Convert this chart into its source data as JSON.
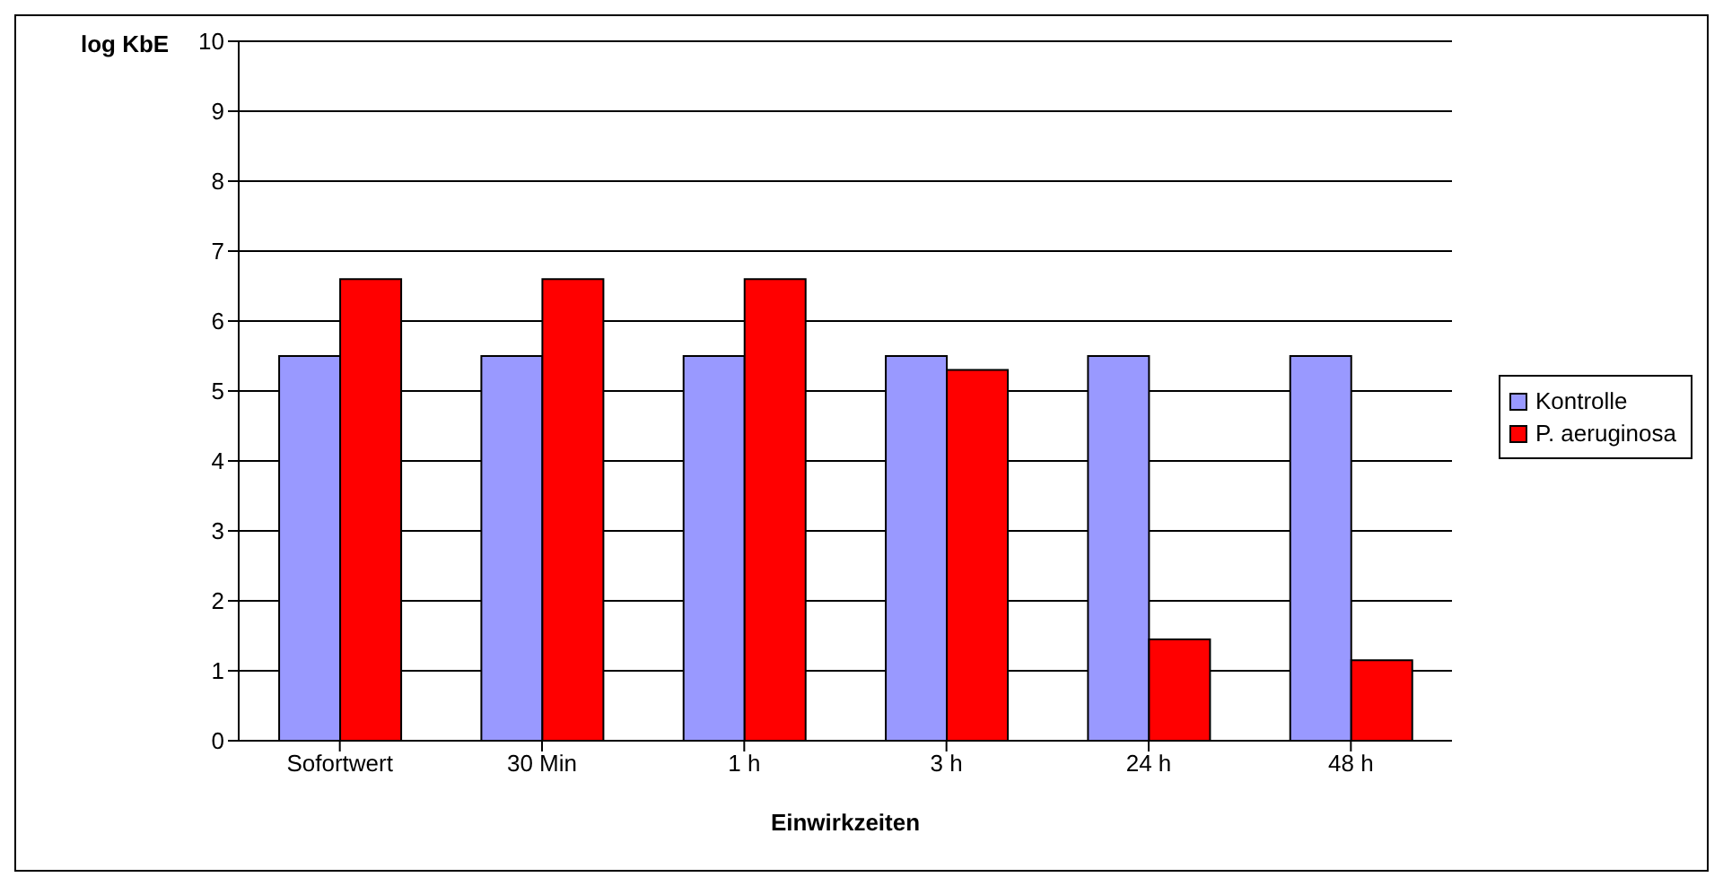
{
  "chart_data": {
    "type": "bar",
    "xlabel": "Einwirkzeiten",
    "ylabel": "log KbE",
    "categories": [
      "Sofortwert",
      "30 Min",
      "1 h",
      "3 h",
      "24 h",
      "48 h"
    ],
    "series": [
      {
        "name": "Kontrolle",
        "color": "#9999ff",
        "values": [
          5.5,
          5.5,
          5.5,
          5.5,
          5.5,
          5.5
        ]
      },
      {
        "name": "P. aeruginosa",
        "color": "#ff0000",
        "values": [
          6.6,
          6.6,
          6.6,
          5.3,
          1.45,
          1.15
        ]
      }
    ],
    "ylim": [
      0,
      10
    ],
    "yticks": [
      0,
      1,
      2,
      3,
      4,
      5,
      6,
      7,
      8,
      9,
      10
    ],
    "grid": "y",
    "legend": "right"
  }
}
